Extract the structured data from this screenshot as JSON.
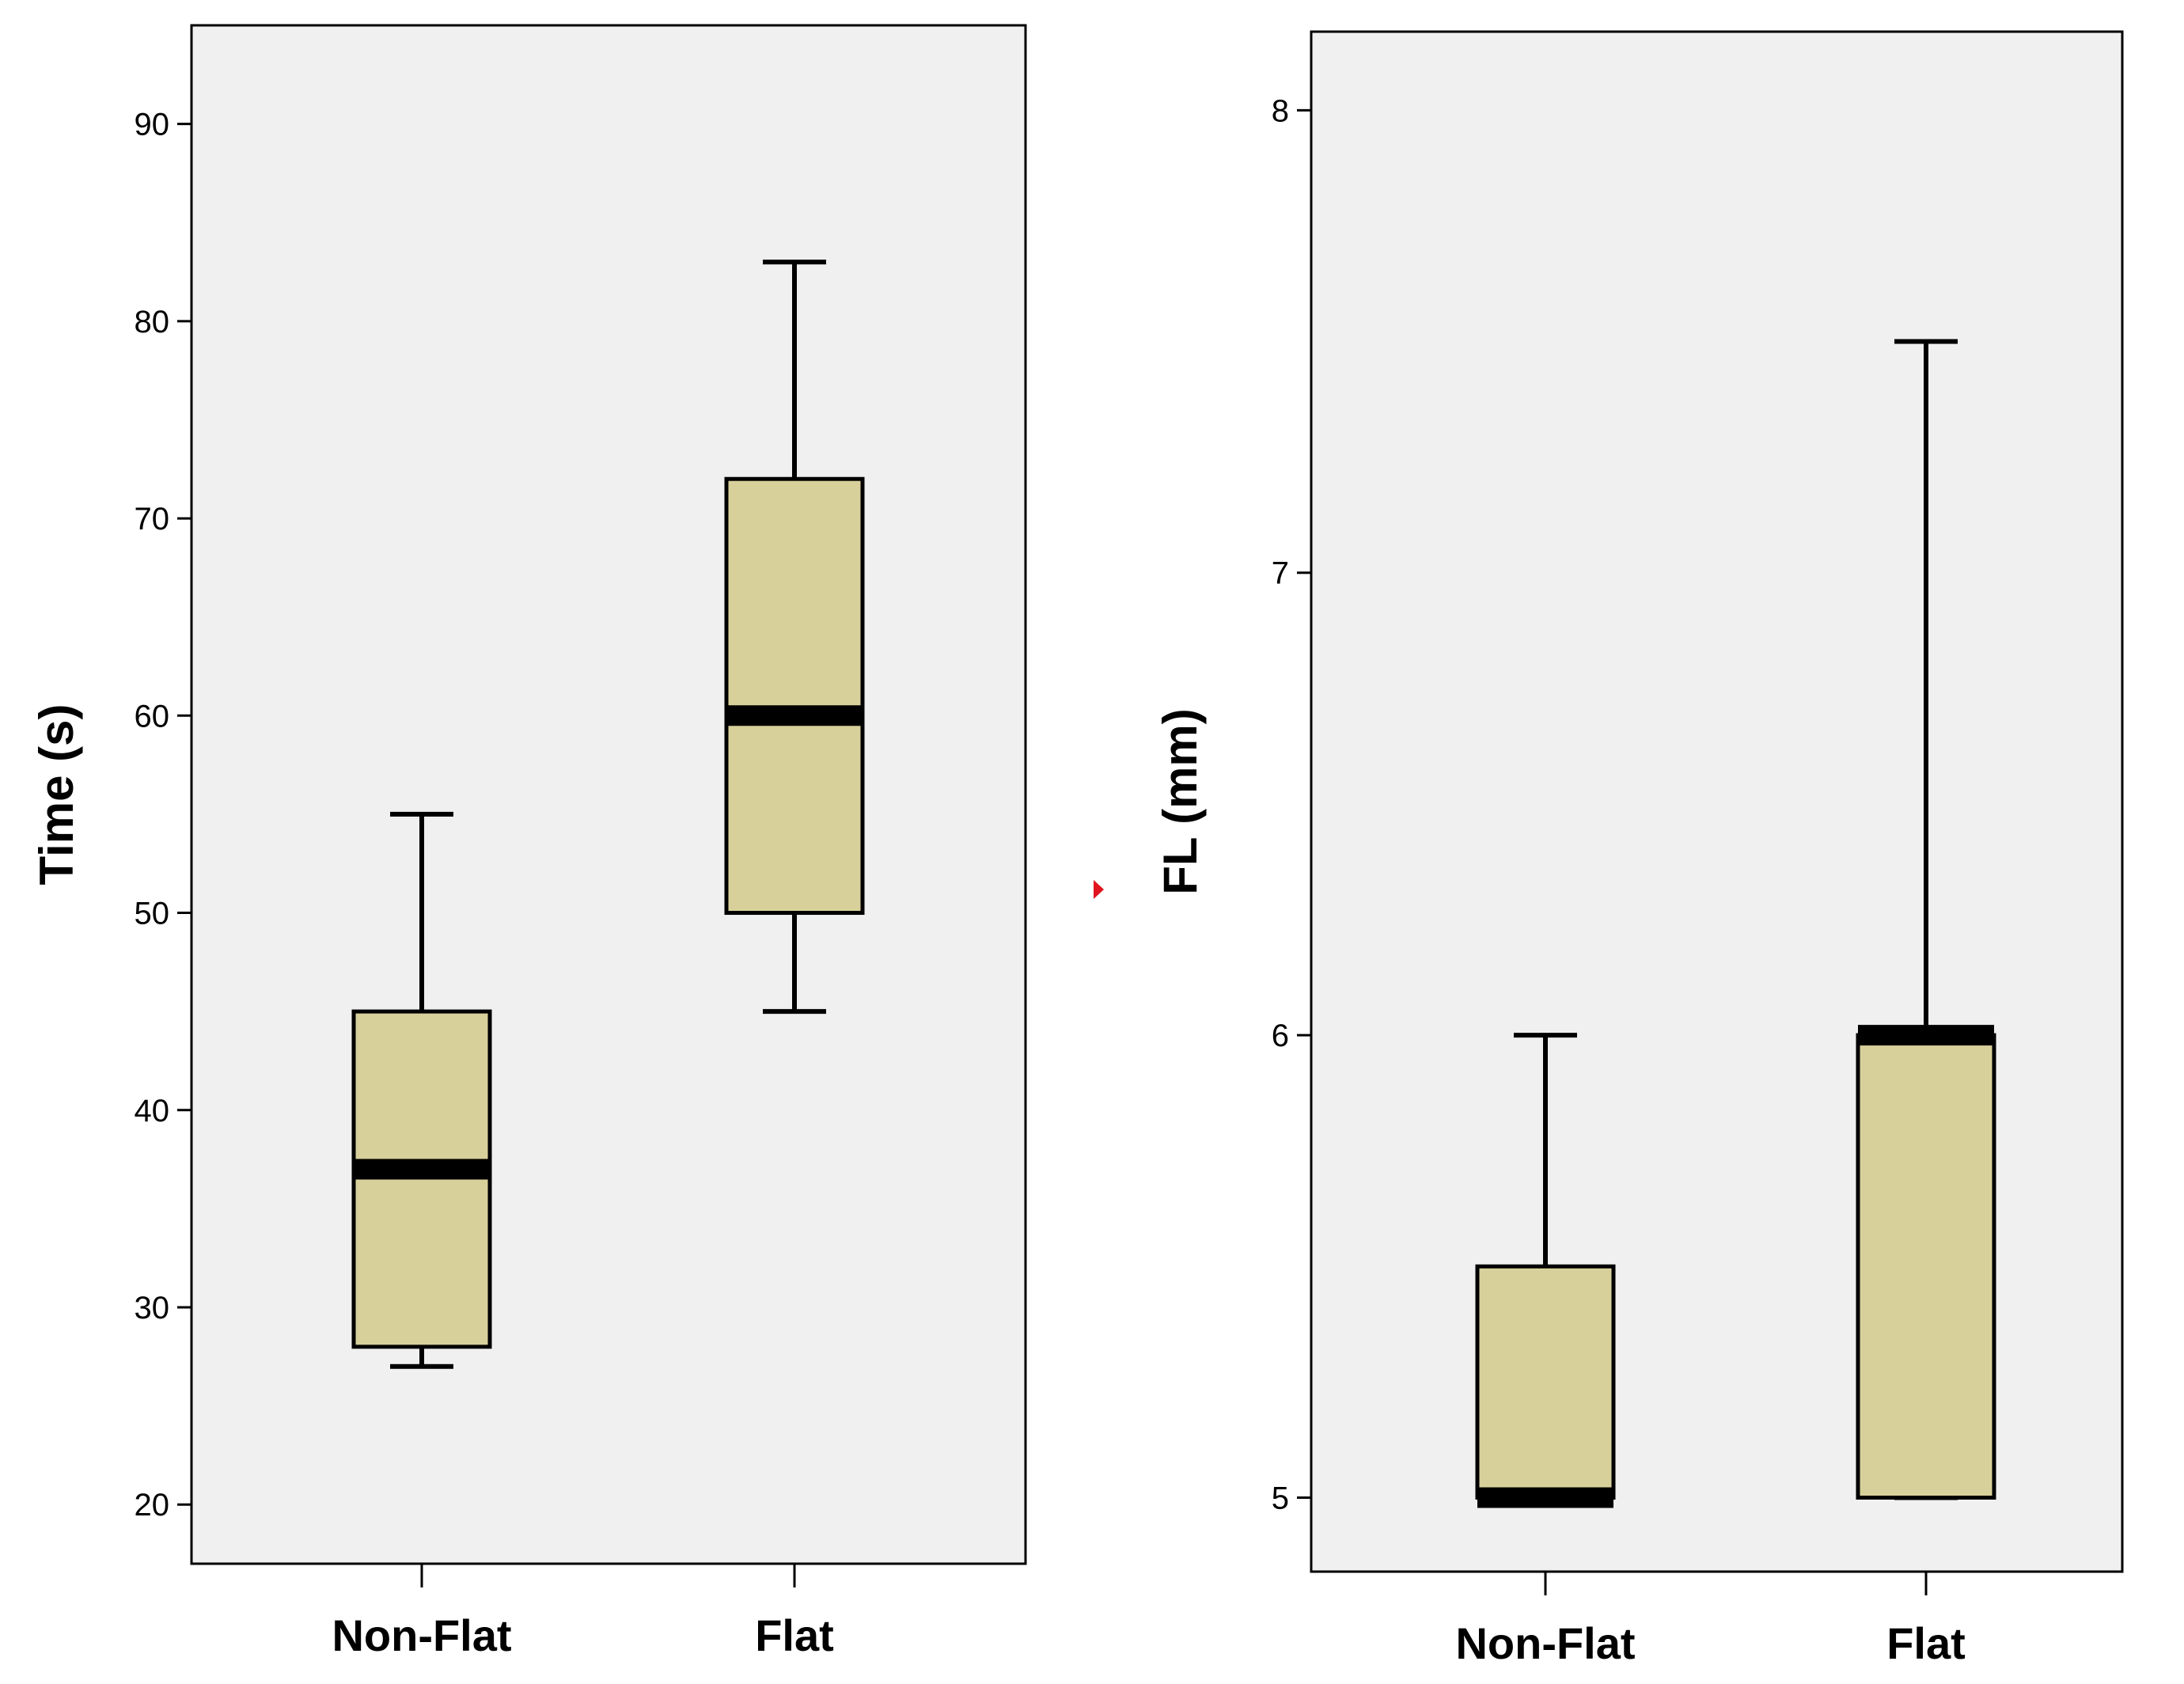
{
  "colors": {
    "plot_background": "#f0f0f0",
    "box_fill": "#d8d09a",
    "stroke": "#000000",
    "marker": "#e0141e"
  },
  "chart_data": [
    {
      "type": "box",
      "title": "",
      "xlabel": "",
      "ylabel": "Time (s)",
      "ylim": [
        17,
        95
      ],
      "yticks": [
        20,
        30,
        40,
        50,
        60,
        70,
        80,
        90
      ],
      "categories": [
        "Non-Flat",
        "Flat"
      ],
      "boxes": [
        {
          "category": "Non-Flat",
          "min": 27,
          "q1": 28,
          "median": 37,
          "q3": 45,
          "max": 55
        },
        {
          "category": "Flat",
          "min": 45,
          "q1": 50,
          "median": 60,
          "q3": 72,
          "max": 83
        }
      ]
    },
    {
      "type": "box",
      "title": "",
      "xlabel": "",
      "ylabel": "FL (mm)",
      "ylim": [
        4.84,
        8.17
      ],
      "yticks": [
        5,
        6,
        7,
        8
      ],
      "categories": [
        "Non-Flat",
        "Flat"
      ],
      "boxes": [
        {
          "category": "Non-Flat",
          "min": 5,
          "q1": 5,
          "median": 5,
          "q3": 5.5,
          "max": 6
        },
        {
          "category": "Flat",
          "min": 5,
          "q1": 5,
          "median": 6,
          "q3": 6,
          "max": 7.5
        }
      ]
    }
  ]
}
